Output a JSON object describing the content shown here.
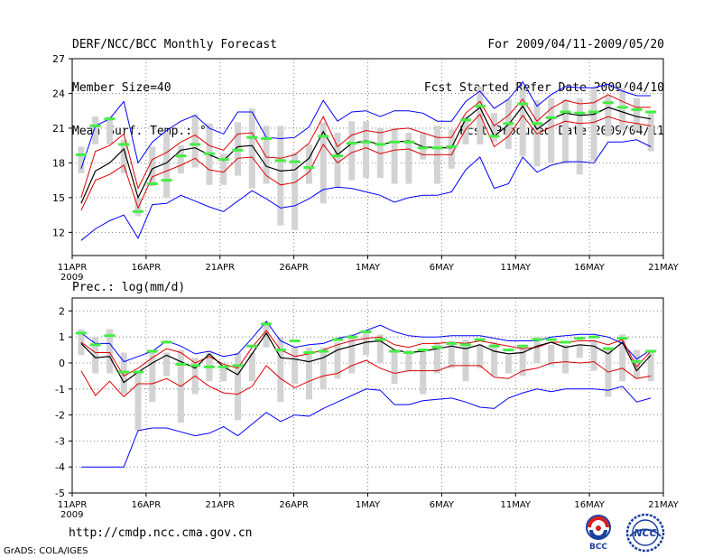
{
  "header": {
    "title": "DERF/NCC/BCC Monthly Forecast",
    "member_size": "Member Size=40",
    "variable_temp": "Mean Surf. Temp.: °C",
    "for_range": "For 2009/04/11-2009/05/20",
    "fcst_started": "Fcst Started Refer Date 2009/04/10",
    "fcst_produced": "Fcst Produced Date 2009/04/11"
  },
  "footer": {
    "url": "http://cmdp.ncc.cma.gov.cn",
    "credit": "GrADS: COLA/IGES"
  },
  "logos": {
    "bcc": "BCC",
    "ncc": "NCC"
  },
  "colors": {
    "ensemble_max_min": "#0000ff",
    "spread": "#dd0000",
    "mean": "#000000",
    "member_marker": "#44ee44",
    "bars": "#d3d3d3",
    "grid": "#666666"
  },
  "chart_data": [
    {
      "type": "line",
      "title": "Mean Surf. Temp.: °C",
      "x_tick_labels": [
        "11APR",
        "16APR",
        "21APR",
        "26APR",
        "1MAY",
        "6MAY",
        "11MAY",
        "16MAY",
        "21MAY"
      ],
      "year_label": "2009",
      "ylim": [
        10,
        27
      ],
      "y_ticks": [
        12,
        15,
        18,
        21,
        24,
        27
      ],
      "grid": true,
      "series": {
        "max": [
          17.5,
          21.2,
          21.8,
          23.3,
          18.0,
          19.8,
          20.8,
          21.6,
          22.1,
          21.0,
          20.5,
          22.4,
          22.4,
          20.2,
          20.1,
          20.2,
          21.1,
          23.4,
          21.6,
          22.4,
          22.5,
          22.0,
          22.5,
          22.5,
          22.3,
          21.6,
          21.6,
          23.3,
          24.2,
          22.7,
          23.5,
          25.0,
          22.9,
          23.9,
          24.6,
          24.5,
          24.5,
          24.8,
          24.2,
          23.8,
          23.8
        ],
        "upper": [
          15.0,
          19.0,
          19.5,
          20.5,
          15.8,
          18.3,
          18.9,
          19.8,
          20.4,
          19.5,
          19.1,
          20.5,
          20.6,
          18.5,
          18.4,
          18.7,
          19.7,
          22.0,
          19.4,
          20.4,
          20.8,
          20.6,
          20.9,
          21.0,
          20.6,
          20.2,
          20.2,
          22.3,
          23.3,
          21.2,
          22.1,
          23.5,
          21.6,
          22.7,
          23.4,
          23.1,
          23.2,
          23.9,
          23.3,
          22.8,
          22.8
        ],
        "mean": [
          14.5,
          17.3,
          18.0,
          19.2,
          15.0,
          17.5,
          18.0,
          19.1,
          19.3,
          18.7,
          18.2,
          19.4,
          19.5,
          17.7,
          17.3,
          17.4,
          18.4,
          20.7,
          18.7,
          19.7,
          19.9,
          19.6,
          19.8,
          19.9,
          19.4,
          19.3,
          19.3,
          21.8,
          22.8,
          20.3,
          21.3,
          22.9,
          20.9,
          21.8,
          22.3,
          22.1,
          22.2,
          22.8,
          22.4,
          22.0,
          21.8
        ],
        "lower": [
          13.9,
          16.5,
          17.0,
          17.8,
          14.1,
          16.8,
          17.3,
          17.8,
          18.4,
          17.4,
          17.2,
          18.4,
          18.5,
          16.9,
          16.1,
          16.3,
          17.2,
          19.6,
          18.0,
          18.9,
          19.3,
          18.8,
          19.1,
          19.2,
          18.7,
          18.7,
          18.7,
          20.9,
          22.2,
          19.4,
          20.3,
          22.1,
          20.5,
          21.1,
          21.6,
          21.4,
          21.5,
          22.0,
          21.6,
          21.4,
          21.2
        ],
        "min": [
          11.3,
          12.3,
          13.0,
          13.5,
          11.5,
          14.4,
          14.5,
          15.2,
          14.7,
          14.2,
          13.8,
          14.7,
          15.6,
          14.9,
          14.1,
          14.3,
          14.9,
          15.7,
          15.9,
          15.8,
          15.5,
          15.2,
          14.6,
          15.0,
          15.2,
          15.2,
          15.5,
          17.4,
          18.5,
          15.8,
          16.2,
          18.5,
          17.2,
          17.8,
          18.1,
          18.1,
          18.0,
          19.8,
          19.8,
          20.0,
          19.4
        ],
        "bars_top": [
          19.4,
          22.0,
          22.0,
          20.0,
          15.0,
          19.4,
          20.7,
          19.5,
          22.2,
          21.4,
          18.8,
          21.5,
          22.7,
          21.2,
          21.2,
          18.9,
          19.6,
          21.5,
          20.6,
          21.6,
          21.6,
          21.0,
          21.0,
          20.6,
          20.6,
          21.2,
          20.9,
          22.0,
          24.6,
          22.3,
          23.5,
          24.3,
          23.4,
          23.6,
          23.5,
          23.6,
          24.5,
          23.8,
          24.5,
          23.6,
          22.5
        ],
        "bars_bottom": [
          17.1,
          19.6,
          19.6,
          17.1,
          13.4,
          16.0,
          15.0,
          17.1,
          17.6,
          16.1,
          16.1,
          16.9,
          15.8,
          16.2,
          12.6,
          12.2,
          16.2,
          14.5,
          15.9,
          16.5,
          16.7,
          16.7,
          16.2,
          16.2,
          18.3,
          16.2,
          17.5,
          19.6,
          19.6,
          19.8,
          19.2,
          18.6,
          17.7,
          18.0,
          17.9,
          17.0,
          18.2,
          20.3,
          20.8,
          20.8,
          19.0
        ],
        "markers": [
          18.7,
          21.2,
          21.8,
          19.6,
          13.8,
          16.2,
          16.5,
          18.6,
          19.6,
          18.8,
          18.3,
          19.1,
          20.2,
          20.1,
          18.2,
          18.1,
          17.6,
          20.3,
          18.6,
          19.7,
          19.8,
          19.6,
          19.8,
          19.8,
          19.3,
          19.3,
          19.4,
          21.7,
          22.9,
          20.3,
          21.4,
          23.1,
          21.4,
          21.9,
          22.4,
          22.3,
          22.4,
          23.2,
          22.8,
          22.6,
          22.4
        ]
      }
    },
    {
      "type": "line",
      "title": "Prec.: log(mm/d)",
      "x_tick_labels": [
        "11APR",
        "16APR",
        "21APR",
        "26APR",
        "1MAY",
        "6MAY",
        "11MAY",
        "16MAY",
        "21MAY"
      ],
      "year_label": "2009",
      "ylim": [
        -5,
        2.5
      ],
      "y_ticks": [
        -5,
        -4,
        -3,
        -2,
        -1,
        0,
        1,
        2
      ],
      "grid": true,
      "series": {
        "max": [
          1.15,
          0.75,
          0.75,
          0.05,
          0.25,
          0.45,
          0.85,
          0.65,
          0.35,
          0.45,
          0.25,
          0.35,
          0.95,
          1.6,
          0.85,
          0.6,
          0.7,
          0.75,
          0.95,
          1.05,
          1.25,
          1.45,
          1.2,
          1.05,
          1.0,
          1.0,
          1.05,
          1.05,
          1.05,
          0.95,
          0.85,
          0.85,
          0.85,
          1.0,
          1.05,
          1.1,
          1.1,
          1.0,
          0.75,
          0.15,
          0.5
        ],
        "upper": [
          0.8,
          0.4,
          0.4,
          -0.5,
          -0.2,
          0.2,
          0.55,
          0.4,
          0.0,
          0.25,
          -0.05,
          -0.2,
          0.6,
          1.25,
          0.5,
          0.25,
          0.35,
          0.5,
          0.7,
          0.85,
          0.95,
          1.0,
          0.7,
          0.6,
          0.75,
          0.75,
          0.8,
          0.75,
          0.85,
          0.75,
          0.65,
          0.55,
          0.6,
          0.8,
          0.8,
          0.85,
          0.85,
          0.7,
          0.9,
          -0.15,
          0.45
        ],
        "mean": [
          0.75,
          0.2,
          0.25,
          -0.75,
          -0.35,
          0.0,
          0.3,
          0.05,
          -0.2,
          0.35,
          -0.15,
          -0.45,
          0.35,
          1.15,
          0.2,
          0.15,
          0.05,
          0.2,
          0.5,
          0.65,
          0.8,
          0.85,
          0.5,
          0.4,
          0.45,
          0.55,
          0.65,
          0.55,
          0.7,
          0.45,
          0.35,
          0.4,
          0.65,
          0.8,
          0.6,
          0.7,
          0.65,
          0.35,
          0.8,
          -0.3,
          0.3
        ],
        "lower": [
          -0.3,
          -1.25,
          -0.7,
          -1.3,
          -0.8,
          -0.8,
          -0.6,
          -0.9,
          -0.5,
          -0.9,
          -1.15,
          -1.2,
          -0.9,
          -0.1,
          -0.6,
          -0.95,
          -0.7,
          -0.5,
          -0.4,
          -0.1,
          0.1,
          -0.2,
          -0.4,
          -0.3,
          -0.3,
          -0.3,
          -0.1,
          -0.1,
          -0.1,
          -0.55,
          -0.6,
          -0.3,
          -0.2,
          0.0,
          0.05,
          0.0,
          0.05,
          -0.35,
          -0.2,
          -0.6,
          -0.5
        ],
        "min": [
          -4.0,
          -4.0,
          -4.0,
          -4.0,
          -2.6,
          -2.5,
          -2.5,
          -2.65,
          -2.8,
          -2.7,
          -2.45,
          -2.8,
          -2.35,
          -1.9,
          -2.25,
          -2.0,
          -2.05,
          -1.75,
          -1.5,
          -1.25,
          -1.0,
          -1.05,
          -1.6,
          -1.6,
          -1.45,
          -1.4,
          -1.35,
          -1.5,
          -1.7,
          -1.75,
          -1.35,
          -1.15,
          -1.0,
          -1.1,
          -1.0,
          -1.0,
          -1.0,
          -1.05,
          -0.9,
          -1.5,
          -1.35
        ],
        "bars_top": [
          1.3,
          1.0,
          1.3,
          0.4,
          -0.3,
          0.5,
          0.4,
          0.5,
          0.2,
          0.4,
          -0.2,
          0.4,
          0.4,
          1.6,
          1.0,
          0.6,
          0.6,
          0.6,
          0.8,
          1.1,
          1.2,
          1.1,
          0.4,
          0.5,
          0.5,
          0.8,
          0.7,
          0.9,
          0.7,
          0.8,
          0.3,
          0.6,
          1.0,
          0.7,
          0.7,
          0.7,
          0.9,
          0.6,
          1.1,
          0.5,
          0.4
        ],
        "bars_bottom": [
          0.3,
          -0.4,
          -0.4,
          -1.2,
          -2.6,
          -1.5,
          -0.5,
          -2.3,
          -1.2,
          -0.7,
          -0.7,
          -2.2,
          -0.7,
          0.6,
          -1.5,
          -0.8,
          -1.4,
          -1.0,
          -0.6,
          -0.4,
          0.3,
          0.0,
          -0.8,
          -0.3,
          -1.2,
          -0.4,
          -0.2,
          -0.7,
          -0.2,
          -0.5,
          -0.4,
          -0.5,
          0.0,
          -0.1,
          -0.4,
          0.2,
          -0.3,
          -1.3,
          -0.7,
          -0.6,
          -0.7
        ],
        "markers": [
          1.15,
          0.7,
          1.05,
          -0.35,
          -0.35,
          0.45,
          0.8,
          -0.05,
          -0.1,
          -0.15,
          -0.15,
          -0.1,
          0.65,
          1.5,
          0.5,
          0.85,
          0.4,
          0.45,
          0.9,
          1.0,
          1.2,
          0.9,
          0.45,
          0.4,
          0.5,
          0.6,
          0.75,
          0.7,
          0.9,
          0.65,
          0.5,
          0.65,
          0.9,
          0.9,
          0.8,
          0.95,
          1.0,
          0.55,
          0.95,
          0.05,
          0.45
        ]
      }
    }
  ]
}
